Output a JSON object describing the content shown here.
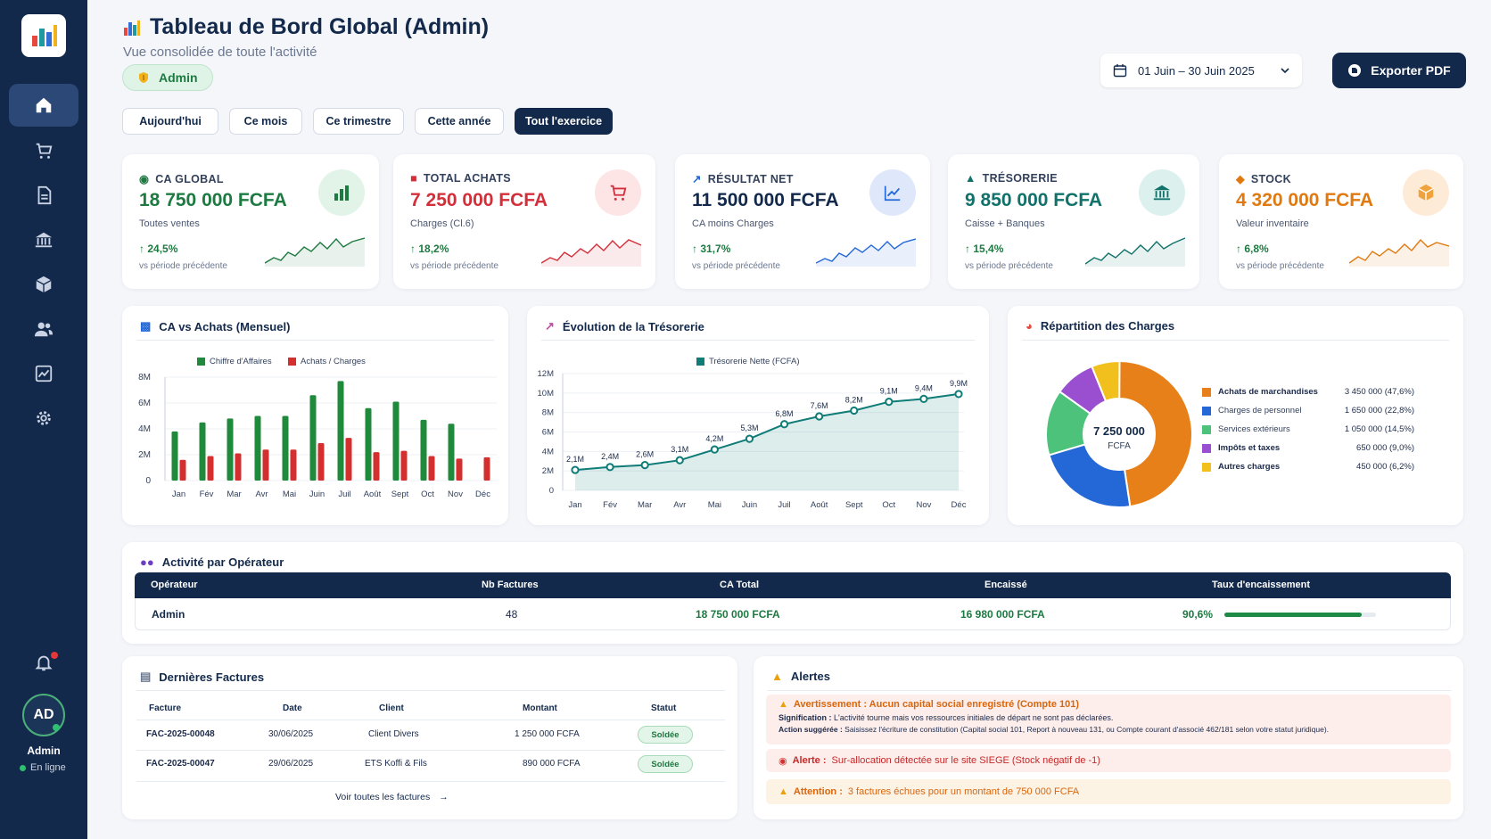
{
  "sidebar": {
    "nav": [
      "home",
      "cart",
      "document",
      "bank",
      "box",
      "users",
      "chart",
      "settings"
    ],
    "user": {
      "initials": "AD",
      "name": "Admin",
      "status": "En ligne"
    }
  },
  "header": {
    "title": "Tableau de Bord Global (Admin)",
    "subtitle": "Vue consolidée de toute l'activité",
    "role_badge": "Admin",
    "date_range": "01 Juin – 30 Juin 2025",
    "export_label": "Exporter PDF"
  },
  "periods": [
    "Aujourd'hui",
    "Ce mois",
    "Ce trimestre",
    "Cette année",
    "Tout l'exercice"
  ],
  "active_period": "Tout l'exercice",
  "kpis": [
    {
      "label": "CA GLOBAL",
      "value": "18 750 000 FCFA",
      "sub": "Toutes ventes",
      "trend": "24,5%",
      "cmp": "vs période précédente",
      "color": "#1d7a41",
      "icon": "bar-chart-icon",
      "tint": "#e2f3e8"
    },
    {
      "label": "TOTAL ACHATS",
      "value": "7 250 000 FCFA",
      "sub": "Charges (Cl.6)",
      "trend": "18,2%",
      "cmp": "vs période précédente",
      "color": "#d32f3a",
      "icon": "cart-icon",
      "tint": "#fde5e6"
    },
    {
      "label": "RÉSULTAT NET",
      "value": "11 500 000 FCFA",
      "sub": "CA moins Charges",
      "trend": "31,7%",
      "cmp": "vs période précédente",
      "color": "#13294b",
      "icon": "trend-up-icon",
      "tint": "#dfe8fb"
    },
    {
      "label": "TRÉSORERIE",
      "value": "9 850 000 FCFA",
      "sub": "Caisse + Banques",
      "trend": "15,4%",
      "cmp": "vs période précédente",
      "color": "#10726b",
      "icon": "bank-icon",
      "tint": "#dcf1ee"
    },
    {
      "label": "STOCK",
      "value": "4 320 000 FCFA",
      "sub": "Valeur inventaire",
      "trend": "6,8%",
      "cmp": "vs période précédente",
      "color": "#e07a10",
      "icon": "box-icon",
      "tint": "#fdebd7"
    }
  ],
  "panels": {
    "ca_achats_title": "CA vs Achats (Mensuel)",
    "treso_title": "Évolution de la Trésorerie",
    "repartition_title": "Répartition des Charges",
    "operator_title": "Activité par Opérateur",
    "invoices_title": "Dernières Factures",
    "alerts_title": "Alertes"
  },
  "chart_data": [
    {
      "type": "bar",
      "title": "CA vs Achats (Mensuel)",
      "categories": [
        "Jan",
        "Fév",
        "Mar",
        "Avr",
        "Mai",
        "Juin",
        "Juil",
        "Août",
        "Sept",
        "Oct",
        "Nov",
        "Déc"
      ],
      "series": [
        {
          "name": "Chiffre d'Affaires",
          "color": "#1f8a3b",
          "values": [
            3.8,
            4.5,
            4.8,
            5.0,
            5.0,
            6.6,
            7.7,
            5.6,
            6.1,
            4.7,
            4.4,
            0
          ]
        },
        {
          "name": "Achats / Charges",
          "color": "#d32f2f",
          "values": [
            1.6,
            1.9,
            2.1,
            2.4,
            2.4,
            2.9,
            3.3,
            2.2,
            2.3,
            1.9,
            1.7,
            1.8
          ]
        }
      ],
      "yticks": [
        "0",
        "2M",
        "4M",
        "6M",
        "8M"
      ],
      "ylim": [
        0,
        8
      ]
    },
    {
      "type": "area",
      "title": "Évolution de la Trésorerie",
      "categories": [
        "Jan",
        "Fév",
        "Mar",
        "Avr",
        "Mai",
        "Juin",
        "Juil",
        "Août",
        "Sept",
        "Oct",
        "Nov",
        "Déc"
      ],
      "series": [
        {
          "name": "Trésorerie Nette (FCFA)",
          "color": "#0f7c77",
          "values": [
            2.1,
            2.4,
            2.6,
            3.1,
            4.2,
            5.3,
            6.8,
            7.6,
            8.2,
            9.1,
            9.4,
            9.9
          ]
        }
      ],
      "point_labels": [
        "2,1M",
        "2,4M",
        "2,6M",
        "3,1M",
        "4,2M",
        "5,3M",
        "6,8M",
        "7,6M",
        "8,2M",
        "9,1M",
        "9,4M",
        "9,9M"
      ],
      "yticks": [
        "0",
        "2M",
        "4M",
        "6M",
        "8M",
        "10M",
        "12M"
      ],
      "ylim": [
        0,
        12
      ]
    },
    {
      "type": "pie",
      "title": "Répartition des Charges",
      "center_value": "7 250 000",
      "center_unit": "FCFA",
      "slices": [
        {
          "label": "Achats de marchandises",
          "value": "3 450 000 (47,6%)",
          "pct": 47.6,
          "color": "#e8801a"
        },
        {
          "label": "Charges de personnel",
          "value": "1 650 000 (22,8%)",
          "pct": 22.8,
          "color": "#2368d6"
        },
        {
          "label": "Services extérieurs",
          "value": "1 050 000 (14,5%)",
          "pct": 14.5,
          "color": "#4cc27a"
        },
        {
          "label": "Impôts et taxes",
          "value": "650 000 (9,0%)",
          "pct": 9.0,
          "color": "#9a4fd1"
        },
        {
          "label": "Autres charges",
          "value": "450 000 (6,2%)",
          "pct": 6.2,
          "color": "#f2c01c"
        }
      ]
    }
  ],
  "operator_table": {
    "headers": [
      "Opérateur",
      "Nb Factures",
      "CA Total",
      "Encaissé",
      "Taux d'encaissement"
    ],
    "row": {
      "operator": "Admin",
      "count": "48",
      "ca": "18 750 000 FCFA",
      "encaisse": "16 980 000 FCFA",
      "taux": "90,6%",
      "taux_value": 90.6
    }
  },
  "invoices": {
    "headers": [
      "Facture",
      "Date",
      "Client",
      "Montant",
      "Statut"
    ],
    "rows": [
      {
        "facture": "FAC-2025-00048",
        "date": "30/06/2025",
        "client": "Client Divers",
        "montant": "1 250 000 FCFA",
        "statut": "Soldée"
      },
      {
        "facture": "FAC-2025-00047",
        "date": "29/06/2025",
        "client": "ETS Koffi & Fils",
        "montant": "890 000 FCFA",
        "statut": "Soldée"
      }
    ],
    "see_all": "Voir toutes les factures"
  },
  "alerts": [
    {
      "title": "Avertissement : Aucun capital social enregistré (Compte 101)",
      "meaning_label": "Signification :",
      "meaning": "L'activité tourne mais vos ressources initiales de départ ne sont pas déclarées.",
      "action_label": "Action suggérée :",
      "action": "Saisissez l'écriture de constitution (Capital social 101, Report à nouveau 131, ou Compte courant d'associé 462/181 selon votre statut juridique)."
    },
    {
      "label": "Alerte :",
      "text": "Sur-allocation détectée sur le site SIEGE (Stock négatif de -1)"
    },
    {
      "label": "Attention :",
      "text": "3 factures échues pour un montant de 750 000 FCFA"
    }
  ],
  "colors": {
    "navy": "#13294b",
    "green": "#1d7a41",
    "red": "#d32f3a",
    "teal": "#0f7c77",
    "orange": "#e07a10"
  }
}
